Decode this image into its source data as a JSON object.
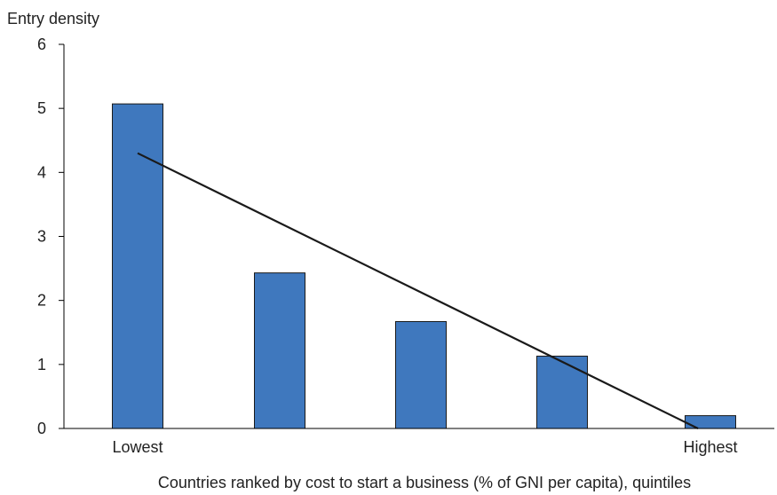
{
  "chart_data": {
    "type": "bar",
    "title": "",
    "ylabel": "Entry density",
    "xlabel": "Countries ranked by cost to start a business (% of GNI per capita), quintiles",
    "categories": [
      "Lowest",
      "",
      "",
      "",
      "Highest"
    ],
    "values": [
      5.07,
      2.43,
      1.67,
      1.13,
      0.2
    ],
    "ylim": [
      0,
      6
    ],
    "yticks": [
      0,
      1,
      2,
      3,
      4,
      5,
      6
    ],
    "trendline": {
      "start": 4.3,
      "end": 0.0
    },
    "grid": false,
    "legend": "none",
    "colors": {
      "bar_fill": "#3f78be",
      "bar_stroke": "#1a1a1a",
      "trendline": "#1a1a1a"
    }
  }
}
